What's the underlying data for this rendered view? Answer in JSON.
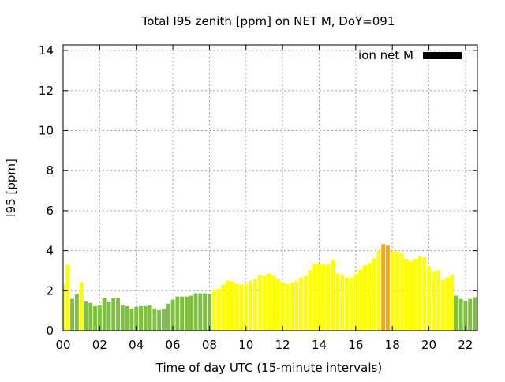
{
  "chart_data": {
    "type": "bar",
    "title": "Total I95 zenith [ppm] on NET M, DoY=091",
    "xlabel": "Time of day UTC (15-minute intervals)",
    "ylabel": "I95 [ppm]",
    "xlim": [
      0,
      22.65
    ],
    "ylim": [
      0,
      14.28
    ],
    "x_ticks": [
      "00",
      "02",
      "04",
      "06",
      "08",
      "10",
      "12",
      "14",
      "16",
      "18",
      "20",
      "22"
    ],
    "x_tick_values": [
      0,
      2,
      4,
      6,
      8,
      10,
      12,
      14,
      16,
      18,
      20,
      22
    ],
    "y_ticks": [
      "0",
      "2",
      "4",
      "6",
      "8",
      "10",
      "12",
      "14"
    ],
    "y_tick_values": [
      0,
      2,
      4,
      6,
      8,
      10,
      12,
      14
    ],
    "grid": true,
    "legend": {
      "label": "ion net M",
      "color": "#000000",
      "placement": "top-right"
    },
    "bar_interval_hours": 0.25,
    "color_thresholds": [
      2,
      4
    ],
    "colors": {
      "low": "#80c040",
      "mid": "#ffff00",
      "high": "#ffa500"
    },
    "values": [
      2.3,
      3.3,
      1.6,
      1.83,
      2.42,
      1.47,
      1.39,
      1.23,
      1.27,
      1.63,
      1.43,
      1.63,
      1.63,
      1.27,
      1.23,
      1.11,
      1.19,
      1.23,
      1.23,
      1.27,
      1.11,
      1.03,
      1.07,
      1.35,
      1.55,
      1.71,
      1.71,
      1.71,
      1.75,
      1.87,
      1.87,
      1.87,
      1.83,
      2.03,
      2.1,
      2.3,
      2.5,
      2.46,
      2.34,
      2.3,
      2.34,
      2.5,
      2.58,
      2.78,
      2.74,
      2.86,
      2.74,
      2.58,
      2.42,
      2.34,
      2.42,
      2.5,
      2.66,
      2.74,
      3.02,
      3.34,
      3.34,
      3.3,
      3.3,
      3.54,
      2.86,
      2.82,
      2.66,
      2.66,
      2.86,
      3.06,
      3.26,
      3.38,
      3.62,
      3.98,
      4.33,
      4.25,
      3.97,
      3.97,
      3.89,
      3.58,
      3.46,
      3.58,
      3.74,
      3.66,
      3.22,
      2.98,
      3.02,
      2.54,
      2.66,
      2.78,
      1.75,
      1.59,
      1.47,
      1.59,
      1.67,
      1.39
    ]
  }
}
